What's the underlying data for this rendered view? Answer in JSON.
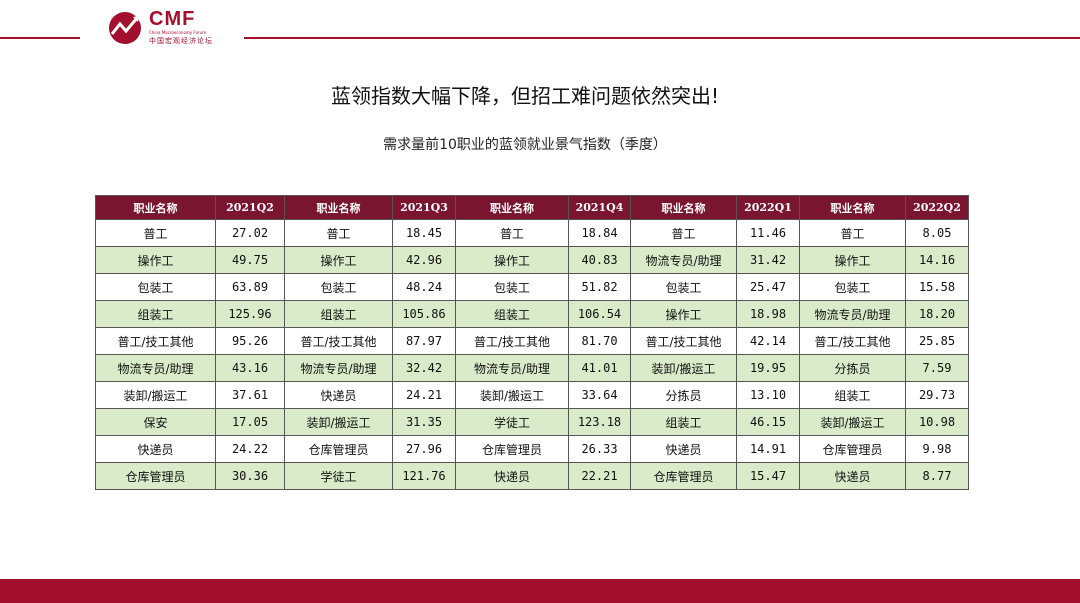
{
  "logo": {
    "text": "CMF",
    "sub_en": "China Macroeconomy Forum",
    "sub_cn": "中国宏观经济论坛"
  },
  "title": "蓝领指数大幅下降，但招工难问题依然突出!",
  "subtitle": "需求量前10职业的蓝领就业景气指数（季度）",
  "table": {
    "headers": [
      "职业名称",
      "2021Q2",
      "职业名称",
      "2021Q3",
      "职业名称",
      "2021Q4",
      "职业名称",
      "2022Q1",
      "职业名称",
      "2022Q2"
    ],
    "rows": [
      [
        "普工",
        "27.02",
        "普工",
        "18.45",
        "普工",
        "18.84",
        "普工",
        "11.46",
        "普工",
        "8.05"
      ],
      [
        "操作工",
        "49.75",
        "操作工",
        "42.96",
        "操作工",
        "40.83",
        "物流专员/助理",
        "31.42",
        "操作工",
        "14.16"
      ],
      [
        "包装工",
        "63.89",
        "包装工",
        "48.24",
        "包装工",
        "51.82",
        "包装工",
        "25.47",
        "包装工",
        "15.58"
      ],
      [
        "组装工",
        "125.96",
        "组装工",
        "105.86",
        "组装工",
        "106.54",
        "操作工",
        "18.98",
        "物流专员/助理",
        "18.20"
      ],
      [
        "普工/技工其他",
        "95.26",
        "普工/技工其他",
        "87.97",
        "普工/技工其他",
        "81.70",
        "普工/技工其他",
        "42.14",
        "普工/技工其他",
        "25.85"
      ],
      [
        "物流专员/助理",
        "43.16",
        "物流专员/助理",
        "32.42",
        "物流专员/助理",
        "41.01",
        "装卸/搬运工",
        "19.95",
        "分拣员",
        "7.59"
      ],
      [
        "装卸/搬运工",
        "37.61",
        "快递员",
        "24.21",
        "装卸/搬运工",
        "33.64",
        "分拣员",
        "13.10",
        "组装工",
        "29.73"
      ],
      [
        "保安",
        "17.05",
        "装卸/搬运工",
        "31.35",
        "学徒工",
        "123.18",
        "组装工",
        "46.15",
        "装卸/搬运工",
        "10.98"
      ],
      [
        "快递员",
        "24.22",
        "仓库管理员",
        "27.96",
        "仓库管理员",
        "26.33",
        "快递员",
        "14.91",
        "仓库管理员",
        "9.98"
      ],
      [
        "仓库管理员",
        "30.36",
        "学徒工",
        "121.76",
        "快递员",
        "22.21",
        "仓库管理员",
        "15.47",
        "快递员",
        "8.77"
      ]
    ]
  },
  "colors": {
    "brand": "#a3102e",
    "header_bg": "#7a1530",
    "alt_row": "#d9ebc9"
  }
}
